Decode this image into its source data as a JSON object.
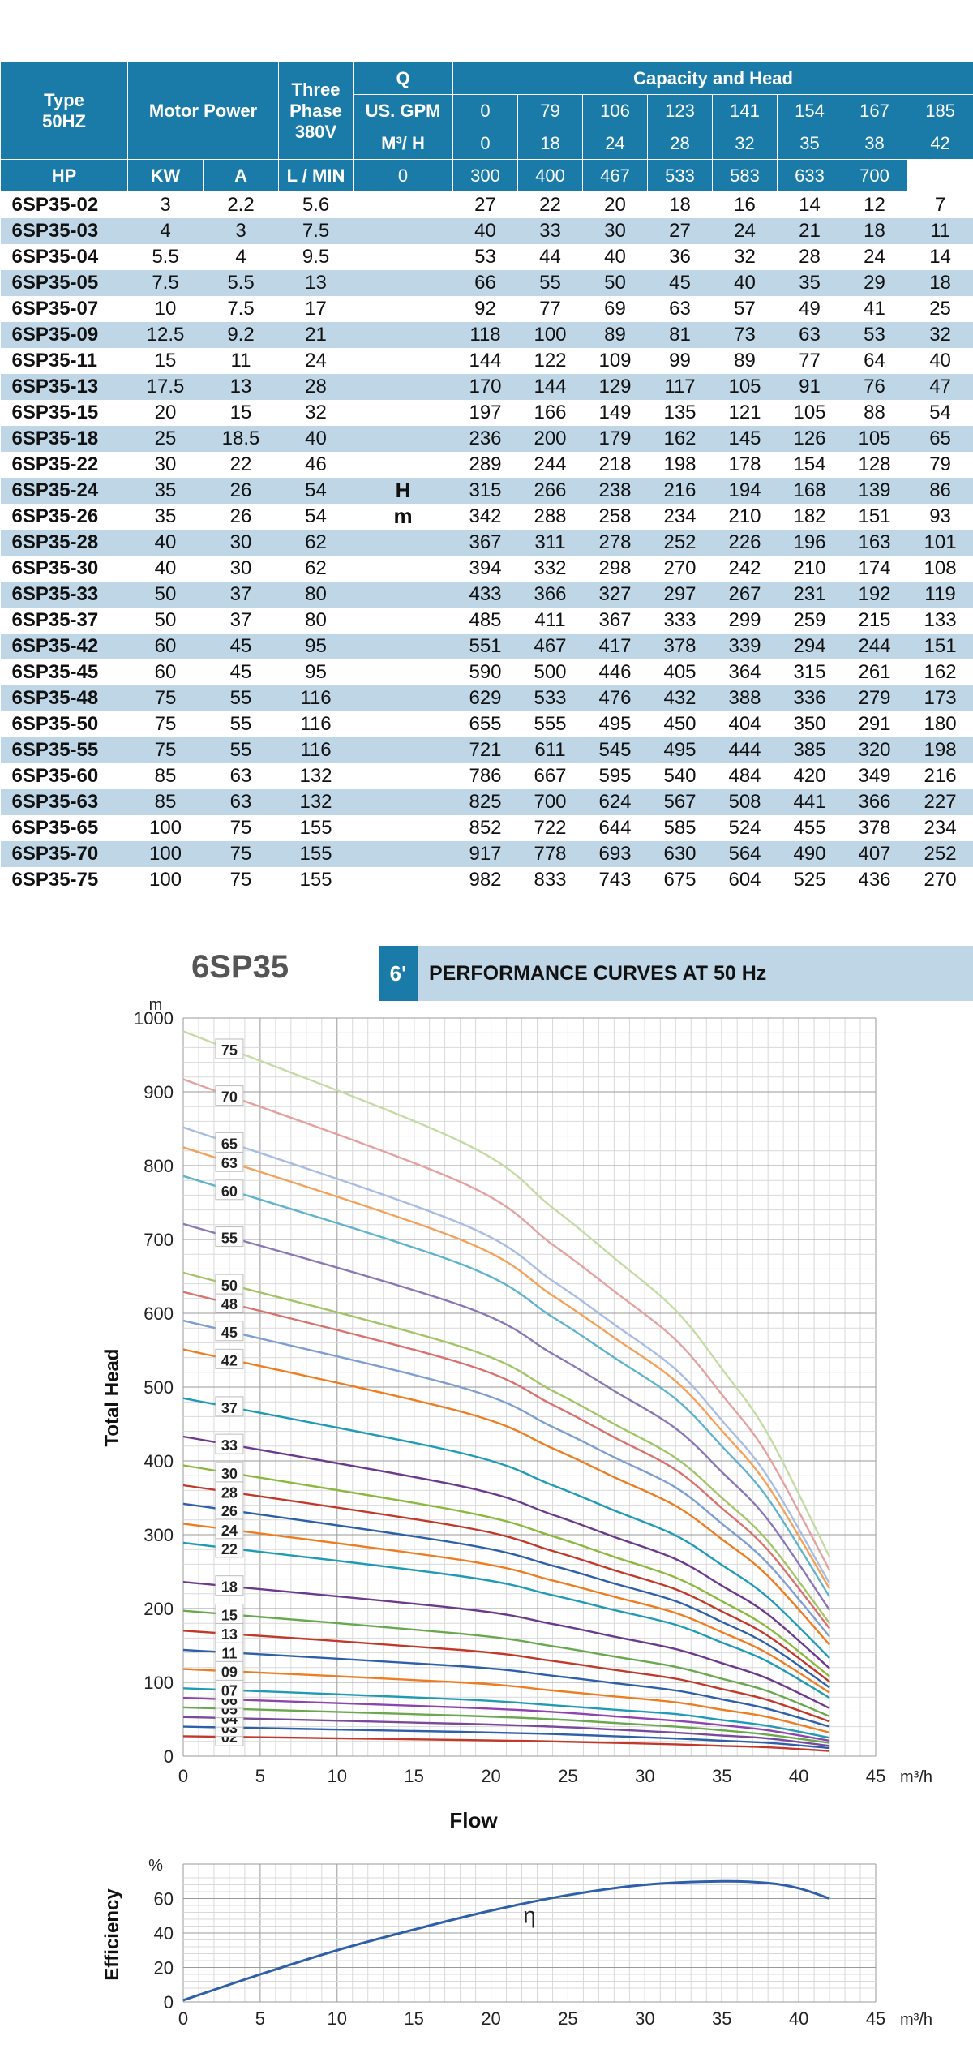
{
  "table": {
    "header_type": "Type",
    "header_type_sub": "50HZ",
    "header_motor": "Motor Power",
    "header_three": "Three",
    "header_phase": "Phase",
    "header_voltage": "380V",
    "header_hp": "HP",
    "header_kw": "KW",
    "header_a": "A",
    "header_q": "Q",
    "header_capacity": "Capacity and Head",
    "unit_gpm": "US. GPM",
    "unit_m3h": "M³/ H",
    "unit_lmin": "L / MIN",
    "gpm": [
      "0",
      "79",
      "106",
      "123",
      "141",
      "154",
      "167",
      "185"
    ],
    "m3h": [
      "0",
      "18",
      "24",
      "28",
      "32",
      "35",
      "38",
      "42"
    ],
    "lmin": [
      "0",
      "300",
      "400",
      "467",
      "533",
      "583",
      "633",
      "700"
    ],
    "h_label": "H",
    "m_label": "m",
    "rows": [
      {
        "type": "6SP35-02",
        "hp": "3",
        "kw": "2.2",
        "a": "5.6",
        "heads": [
          "27",
          "22",
          "20",
          "18",
          "16",
          "14",
          "12",
          "7"
        ]
      },
      {
        "type": "6SP35-03",
        "hp": "4",
        "kw": "3",
        "a": "7.5",
        "heads": [
          "40",
          "33",
          "30",
          "27",
          "24",
          "21",
          "18",
          "11"
        ]
      },
      {
        "type": "6SP35-04",
        "hp": "5.5",
        "kw": "4",
        "a": "9.5",
        "heads": [
          "53",
          "44",
          "40",
          "36",
          "32",
          "28",
          "24",
          "14"
        ]
      },
      {
        "type": "6SP35-05",
        "hp": "7.5",
        "kw": "5.5",
        "a": "13",
        "heads": [
          "66",
          "55",
          "50",
          "45",
          "40",
          "35",
          "29",
          "18"
        ]
      },
      {
        "type": "6SP35-07",
        "hp": "10",
        "kw": "7.5",
        "a": "17",
        "heads": [
          "92",
          "77",
          "69",
          "63",
          "57",
          "49",
          "41",
          "25"
        ]
      },
      {
        "type": "6SP35-09",
        "hp": "12.5",
        "kw": "9.2",
        "a": "21",
        "heads": [
          "118",
          "100",
          "89",
          "81",
          "73",
          "63",
          "53",
          "32"
        ]
      },
      {
        "type": "6SP35-11",
        "hp": "15",
        "kw": "11",
        "a": "24",
        "heads": [
          "144",
          "122",
          "109",
          "99",
          "89",
          "77",
          "64",
          "40"
        ]
      },
      {
        "type": "6SP35-13",
        "hp": "17.5",
        "kw": "13",
        "a": "28",
        "heads": [
          "170",
          "144",
          "129",
          "117",
          "105",
          "91",
          "76",
          "47"
        ]
      },
      {
        "type": "6SP35-15",
        "hp": "20",
        "kw": "15",
        "a": "32",
        "heads": [
          "197",
          "166",
          "149",
          "135",
          "121",
          "105",
          "88",
          "54"
        ]
      },
      {
        "type": "6SP35-18",
        "hp": "25",
        "kw": "18.5",
        "a": "40",
        "heads": [
          "236",
          "200",
          "179",
          "162",
          "145",
          "126",
          "105",
          "65"
        ]
      },
      {
        "type": "6SP35-22",
        "hp": "30",
        "kw": "22",
        "a": "46",
        "heads": [
          "289",
          "244",
          "218",
          "198",
          "178",
          "154",
          "128",
          "79"
        ]
      },
      {
        "type": "6SP35-24",
        "hp": "35",
        "kw": "26",
        "a": "54",
        "heads": [
          "315",
          "266",
          "238",
          "216",
          "194",
          "168",
          "139",
          "86"
        ]
      },
      {
        "type": "6SP35-26",
        "hp": "35",
        "kw": "26",
        "a": "54",
        "heads": [
          "342",
          "288",
          "258",
          "234",
          "210",
          "182",
          "151",
          "93"
        ]
      },
      {
        "type": "6SP35-28",
        "hp": "40",
        "kw": "30",
        "a": "62",
        "heads": [
          "367",
          "311",
          "278",
          "252",
          "226",
          "196",
          "163",
          "101"
        ]
      },
      {
        "type": "6SP35-30",
        "hp": "40",
        "kw": "30",
        "a": "62",
        "heads": [
          "394",
          "332",
          "298",
          "270",
          "242",
          "210",
          "174",
          "108"
        ]
      },
      {
        "type": "6SP35-33",
        "hp": "50",
        "kw": "37",
        "a": "80",
        "heads": [
          "433",
          "366",
          "327",
          "297",
          "267",
          "231",
          "192",
          "119"
        ]
      },
      {
        "type": "6SP35-37",
        "hp": "50",
        "kw": "37",
        "a": "80",
        "heads": [
          "485",
          "411",
          "367",
          "333",
          "299",
          "259",
          "215",
          "133"
        ]
      },
      {
        "type": "6SP35-42",
        "hp": "60",
        "kw": "45",
        "a": "95",
        "heads": [
          "551",
          "467",
          "417",
          "378",
          "339",
          "294",
          "244",
          "151"
        ]
      },
      {
        "type": "6SP35-45",
        "hp": "60",
        "kw": "45",
        "a": "95",
        "heads": [
          "590",
          "500",
          "446",
          "405",
          "364",
          "315",
          "261",
          "162"
        ]
      },
      {
        "type": "6SP35-48",
        "hp": "75",
        "kw": "55",
        "a": "116",
        "heads": [
          "629",
          "533",
          "476",
          "432",
          "388",
          "336",
          "279",
          "173"
        ]
      },
      {
        "type": "6SP35-50",
        "hp": "75",
        "kw": "55",
        "a": "116",
        "heads": [
          "655",
          "555",
          "495",
          "450",
          "404",
          "350",
          "291",
          "180"
        ]
      },
      {
        "type": "6SP35-55",
        "hp": "75",
        "kw": "55",
        "a": "116",
        "heads": [
          "721",
          "611",
          "545",
          "495",
          "444",
          "385",
          "320",
          "198"
        ]
      },
      {
        "type": "6SP35-60",
        "hp": "85",
        "kw": "63",
        "a": "132",
        "heads": [
          "786",
          "667",
          "595",
          "540",
          "484",
          "420",
          "349",
          "216"
        ]
      },
      {
        "type": "6SP35-63",
        "hp": "85",
        "kw": "63",
        "a": "132",
        "heads": [
          "825",
          "700",
          "624",
          "567",
          "508",
          "441",
          "366",
          "227"
        ]
      },
      {
        "type": "6SP35-65",
        "hp": "100",
        "kw": "75",
        "a": "155",
        "heads": [
          "852",
          "722",
          "644",
          "585",
          "524",
          "455",
          "378",
          "234"
        ]
      },
      {
        "type": "6SP35-70",
        "hp": "100",
        "kw": "75",
        "a": "155",
        "heads": [
          "917",
          "778",
          "693",
          "630",
          "564",
          "490",
          "407",
          "252"
        ]
      },
      {
        "type": "6SP35-75",
        "hp": "100",
        "kw": "75",
        "a": "155",
        "heads": [
          "982",
          "833",
          "743",
          "675",
          "604",
          "525",
          "436",
          "270"
        ]
      }
    ]
  },
  "perf": {
    "model_title": "6SP35",
    "badge": "6'",
    "banner_title": "PERFORMANCE CURVES AT 50 Hz"
  },
  "chart_data": [
    {
      "type": "line",
      "title": "",
      "xlabel": "Flow",
      "ylabel": "Total Head",
      "x_unit": "m³/h",
      "y_unit": "m",
      "xlim": [
        0,
        45
      ],
      "ylim": [
        0,
        1000
      ],
      "x_ticks": [
        0,
        5,
        10,
        15,
        20,
        25,
        30,
        35,
        40,
        45
      ],
      "y_ticks": [
        0,
        100,
        200,
        300,
        400,
        500,
        600,
        700,
        800,
        900,
        1000
      ],
      "grid": true,
      "x": [
        0,
        18,
        24,
        28,
        32,
        35,
        38,
        42
      ],
      "series": [
        {
          "name": "02",
          "color": "#c0392b",
          "values": [
            27,
            22,
            20,
            18,
            16,
            14,
            12,
            7
          ]
        },
        {
          "name": "03",
          "color": "#2e5fa8",
          "values": [
            40,
            33,
            30,
            27,
            24,
            21,
            18,
            11
          ]
        },
        {
          "name": "04",
          "color": "#7a4a9a",
          "values": [
            53,
            44,
            40,
            36,
            32,
            28,
            24,
            14
          ]
        },
        {
          "name": "05",
          "color": "#6aa84f",
          "values": [
            66,
            55,
            50,
            45,
            40,
            35,
            29,
            18
          ]
        },
        {
          "name": "06",
          "color": "#8e44ad",
          "values": [
            79,
            66,
            60,
            54,
            48,
            42,
            35,
            21
          ]
        },
        {
          "name": "07",
          "color": "#1f9bb5",
          "values": [
            92,
            77,
            69,
            63,
            57,
            49,
            41,
            25
          ]
        },
        {
          "name": "09",
          "color": "#ee7d22",
          "values": [
            118,
            100,
            89,
            81,
            73,
            63,
            53,
            32
          ]
        },
        {
          "name": "11",
          "color": "#2e5fa8",
          "values": [
            144,
            122,
            109,
            99,
            89,
            77,
            64,
            40
          ]
        },
        {
          "name": "13",
          "color": "#c0392b",
          "values": [
            170,
            144,
            129,
            117,
            105,
            91,
            76,
            47
          ]
        },
        {
          "name": "15",
          "color": "#6aa84f",
          "values": [
            197,
            166,
            149,
            135,
            121,
            105,
            88,
            54
          ]
        },
        {
          "name": "18",
          "color": "#6c3a8c",
          "values": [
            236,
            200,
            179,
            162,
            145,
            126,
            105,
            65
          ]
        },
        {
          "name": "22",
          "color": "#1f9bb5",
          "values": [
            289,
            244,
            218,
            198,
            178,
            154,
            128,
            79
          ]
        },
        {
          "name": "24",
          "color": "#ee7d22",
          "values": [
            315,
            266,
            238,
            216,
            194,
            168,
            139,
            86
          ]
        },
        {
          "name": "26",
          "color": "#2e5fa8",
          "values": [
            342,
            288,
            258,
            234,
            210,
            182,
            151,
            93
          ]
        },
        {
          "name": "28",
          "color": "#c0392b",
          "values": [
            367,
            311,
            278,
            252,
            226,
            196,
            163,
            101
          ]
        },
        {
          "name": "30",
          "color": "#8cb83e",
          "values": [
            394,
            332,
            298,
            270,
            242,
            210,
            174,
            108
          ]
        },
        {
          "name": "33",
          "color": "#6c3a8c",
          "values": [
            433,
            366,
            327,
            297,
            267,
            231,
            192,
            119
          ]
        },
        {
          "name": "37",
          "color": "#1f9bb5",
          "values": [
            485,
            411,
            367,
            333,
            299,
            259,
            215,
            133
          ]
        },
        {
          "name": "42",
          "color": "#ee7d22",
          "values": [
            551,
            467,
            417,
            378,
            339,
            294,
            244,
            151
          ]
        },
        {
          "name": "45",
          "color": "#7f9fd0",
          "values": [
            590,
            500,
            446,
            405,
            364,
            315,
            261,
            162
          ]
        },
        {
          "name": "48",
          "color": "#d9716f",
          "values": [
            629,
            533,
            476,
            432,
            388,
            336,
            279,
            173
          ]
        },
        {
          "name": "50",
          "color": "#a4c468",
          "values": [
            655,
            555,
            495,
            450,
            404,
            350,
            291,
            180
          ]
        },
        {
          "name": "55",
          "color": "#8a77b5",
          "values": [
            721,
            611,
            545,
            495,
            444,
            385,
            320,
            198
          ]
        },
        {
          "name": "60",
          "color": "#5fb3cc",
          "values": [
            786,
            667,
            595,
            540,
            484,
            420,
            349,
            216
          ]
        },
        {
          "name": "63",
          "color": "#f4a15a",
          "values": [
            825,
            700,
            624,
            567,
            508,
            441,
            366,
            227
          ]
        },
        {
          "name": "65",
          "color": "#a9bde3",
          "values": [
            852,
            722,
            644,
            585,
            524,
            455,
            378,
            234
          ]
        },
        {
          "name": "70",
          "color": "#e3a2a0",
          "values": [
            917,
            778,
            693,
            630,
            564,
            490,
            407,
            252
          ]
        },
        {
          "name": "75",
          "color": "#c5dba6",
          "values": [
            982,
            833,
            743,
            675,
            604,
            525,
            436,
            270
          ]
        }
      ]
    },
    {
      "type": "line",
      "title": "",
      "xlabel": "",
      "ylabel": "Efficiency",
      "x_unit": "m³/h",
      "y_unit": "%",
      "xlim": [
        0,
        45
      ],
      "ylim": [
        0,
        80
      ],
      "x_ticks": [
        0,
        5,
        10,
        15,
        20,
        25,
        30,
        35,
        40,
        45
      ],
      "y_ticks": [
        0,
        20,
        40,
        60
      ],
      "grid": true,
      "annotation": "η",
      "series": [
        {
          "color": "#2e5fa8",
          "x": [
            0,
            5,
            10,
            15,
            20,
            25,
            30,
            35,
            38,
            40,
            42
          ],
          "values": [
            1,
            16,
            30,
            42,
            53,
            62,
            68,
            70,
            69,
            66,
            60
          ]
        }
      ]
    }
  ]
}
